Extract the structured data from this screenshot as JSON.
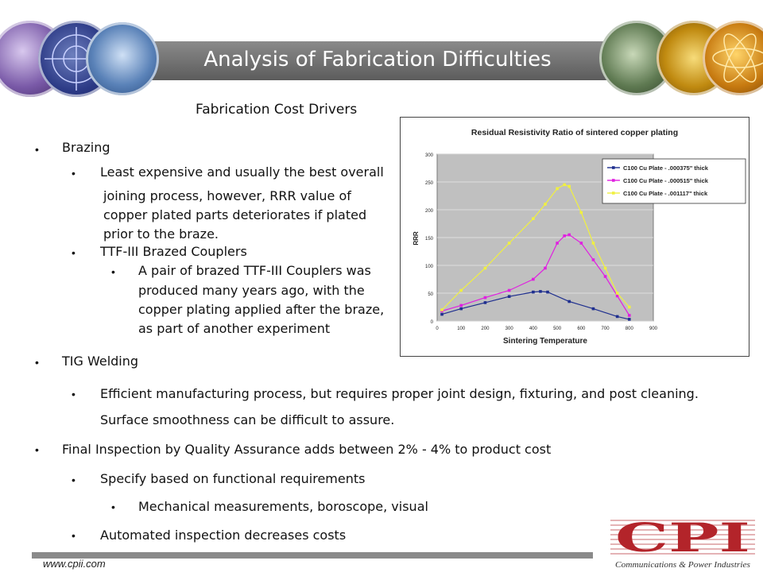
{
  "slide": {
    "title": "Analysis of Fabrication Difficulties",
    "section_title": "Fabrication Cost Drivers",
    "footer_url": "www.cpii.com"
  },
  "bullets": {
    "brazing": "Brazing",
    "brazing_sub1_l1": "Least expensive and usually the best overall",
    "brazing_sub1_l2": "joining process,  however,  RRR value of",
    "brazing_sub1_l3": "copper plated parts deteriorates if plated",
    "brazing_sub1_l4": "prior to the braze.",
    "ttf": "TTF-III Brazed Couplers",
    "ttf_sub_l1": "A pair of brazed TTF-III Couplers was",
    "ttf_sub_l2": "produced   many years ago, with the",
    "ttf_sub_l3": "copper plating applied after the braze,",
    "ttf_sub_l4": "as part of another experiment",
    "tig": "TIG Welding",
    "tig_sub_l1": "Efficient manufacturing process, but requires proper joint design, fixturing, and post cleaning.",
    "tig_sub_l2": "Surface smoothness can be difficult to assure.",
    "final": "Final Inspection by Quality Assurance adds between 2% - 4% to product cost",
    "final_sub1": "Specify based on functional requirements",
    "final_sub1_sub": "Mechanical measurements, boroscope, visual",
    "final_sub2": "Automated inspection decreases costs"
  },
  "logo": {
    "letters": "CPI",
    "tagline": "Communications & Power Industries",
    "color": "#b3242a"
  },
  "chart_data": {
    "type": "line",
    "title": "Residual Resistivity Ratio of sintered copper plating",
    "xlabel": "Sintering Temperature",
    "ylabel": "RRR",
    "xlim": [
      0,
      900
    ],
    "ylim": [
      0,
      300
    ],
    "x_ticks": [
      0,
      100,
      200,
      300,
      400,
      500,
      600,
      700,
      800,
      900
    ],
    "y_ticks": [
      0,
      50,
      100,
      150,
      200,
      250,
      300
    ],
    "plot_background": "#c0c0c0",
    "legend_position": "top-right",
    "series": [
      {
        "name": "C100 Cu Plate - .000375\" thick",
        "color": "#1f2f8f",
        "points": [
          [
            20,
            12
          ],
          [
            100,
            22
          ],
          [
            200,
            33
          ],
          [
            300,
            44
          ],
          [
            400,
            52
          ],
          [
            430,
            53
          ],
          [
            460,
            52
          ],
          [
            550,
            35
          ],
          [
            650,
            22
          ],
          [
            750,
            8
          ],
          [
            800,
            3
          ]
        ]
      },
      {
        "name": "C100 Cu Plate - .000515\" thick",
        "color": "#e020e0",
        "points": [
          [
            20,
            18
          ],
          [
            100,
            28
          ],
          [
            200,
            42
          ],
          [
            300,
            55
          ],
          [
            400,
            75
          ],
          [
            450,
            95
          ],
          [
            500,
            140
          ],
          [
            530,
            153
          ],
          [
            550,
            155
          ],
          [
            600,
            140
          ],
          [
            650,
            110
          ],
          [
            700,
            80
          ],
          [
            750,
            45
          ],
          [
            800,
            10
          ]
        ]
      },
      {
        "name": "C100 Cu Plate - .001117\" thick",
        "color": "#f0f040",
        "points": [
          [
            20,
            20
          ],
          [
            100,
            55
          ],
          [
            200,
            95
          ],
          [
            300,
            140
          ],
          [
            400,
            184
          ],
          [
            450,
            210
          ],
          [
            500,
            238
          ],
          [
            530,
            245
          ],
          [
            550,
            242
          ],
          [
            600,
            195
          ],
          [
            650,
            140
          ],
          [
            700,
            95
          ],
          [
            750,
            50
          ],
          [
            800,
            25
          ]
        ]
      }
    ]
  }
}
